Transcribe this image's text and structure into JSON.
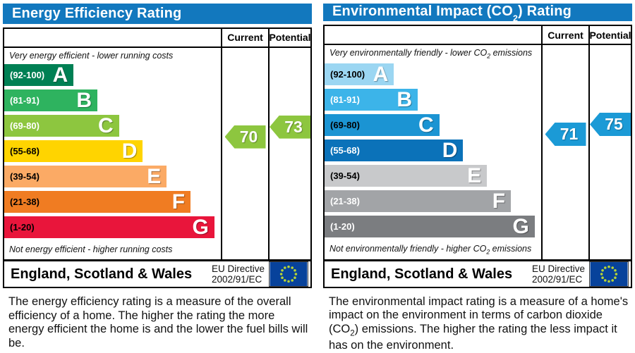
{
  "theme": {
    "header_bg": "#1278be",
    "flag_bg": "#07429b",
    "flag_star_color": "#b8d435"
  },
  "charts": [
    {
      "title": "Energy Efficiency Rating",
      "columns": {
        "current": "Current",
        "potential": "Potential"
      },
      "top_caption": "Very energy efficient - lower running costs",
      "bottom_caption": "Not energy efficient - higher running costs",
      "bands": [
        {
          "letter": "A",
          "range": "(92-100)",
          "color": "#008054",
          "width_pct": 32,
          "text_color": "#ffffff"
        },
        {
          "letter": "B",
          "range": "(81-91)",
          "color": "#2eb35f",
          "width_pct": 43,
          "text_color": "#ffffff"
        },
        {
          "letter": "C",
          "range": "(69-80)",
          "color": "#8dc63f",
          "width_pct": 53,
          "text_color": "#ffffff"
        },
        {
          "letter": "D",
          "range": "(55-68)",
          "color": "#ffd400",
          "width_pct": 64,
          "text_color": "#000000"
        },
        {
          "letter": "E",
          "range": "(39-54)",
          "color": "#fbaa65",
          "width_pct": 75,
          "text_color": "#000000"
        },
        {
          "letter": "F",
          "range": "(21-38)",
          "color": "#f07c22",
          "width_pct": 86,
          "text_color": "#000000"
        },
        {
          "letter": "G",
          "range": "(1-20)",
          "color": "#e9153b",
          "width_pct": 97,
          "text_color": "#000000"
        }
      ],
      "current": {
        "value": "70",
        "color": "#8dc63f"
      },
      "potential": {
        "value": "73",
        "color": "#8dc63f"
      },
      "footer": {
        "region": "England, Scotland & Wales",
        "directive_line1": "EU Directive",
        "directive_line2": "2002/91/EC"
      },
      "description": "The energy efficiency rating is a measure of the overall efficiency of a home. The higher the rating the more energy efficient the home is and the lower the fuel bills will be."
    },
    {
      "title_parts": {
        "pre": "Environmental Impact (CO",
        "sub": "2",
        "post": ") Rating"
      },
      "columns": {
        "current": "Current",
        "potential": "Potential"
      },
      "top_caption_parts": {
        "pre": "Very environmentally friendly - lower CO",
        "sub": "2",
        "post": " emissions"
      },
      "bottom_caption_parts": {
        "pre": "Not environmentally friendly - higher CO",
        "sub": "2",
        "post": " emissions"
      },
      "bands": [
        {
          "letter": "A",
          "range": "(92-100)",
          "color": "#9bd6f2",
          "width_pct": 32,
          "text_color": "#000000"
        },
        {
          "letter": "B",
          "range": "(81-91)",
          "color": "#3cb4e9",
          "width_pct": 43,
          "text_color": "#ffffff"
        },
        {
          "letter": "C",
          "range": "(69-80)",
          "color": "#1b94d3",
          "width_pct": 53,
          "text_color": "#000000"
        },
        {
          "letter": "D",
          "range": "(55-68)",
          "color": "#0b72b9",
          "width_pct": 64,
          "text_color": "#ffffff"
        },
        {
          "letter": "E",
          "range": "(39-54)",
          "color": "#c8c9cb",
          "width_pct": 75,
          "text_color": "#000000"
        },
        {
          "letter": "F",
          "range": "(21-38)",
          "color": "#a2a4a7",
          "width_pct": 86,
          "text_color": "#ffffff"
        },
        {
          "letter": "G",
          "range": "(1-20)",
          "color": "#7b7d80",
          "width_pct": 97,
          "text_color": "#ffffff"
        }
      ],
      "current": {
        "value": "71",
        "color": "#1b9ad6"
      },
      "potential": {
        "value": "75",
        "color": "#1b9ad6"
      },
      "footer": {
        "region": "England, Scotland & Wales",
        "directive_line1": "EU Directive",
        "directive_line2": "2002/91/EC"
      },
      "description_parts": {
        "pre": "The environmental impact rating is a measure of a home's impact on the environment in terms of carbon dioxide (CO",
        "sub": "2",
        "post": ") emissions. The higher the rating the less impact it has on the environment."
      }
    }
  ],
  "chart_data": [
    {
      "type": "bar",
      "title": "Energy Efficiency Rating",
      "categories": [
        "A (92-100)",
        "B (81-91)",
        "C (69-80)",
        "D (55-68)",
        "E (39-54)",
        "F (21-38)",
        "G (1-20)"
      ],
      "band_width_pct": [
        32,
        43,
        53,
        64,
        75,
        86,
        97
      ],
      "current": 70,
      "current_band": "C",
      "potential": 73,
      "potential_band": "C",
      "region": "England, Scotland & Wales",
      "directive": "EU Directive 2002/91/EC"
    },
    {
      "type": "bar",
      "title": "Environmental Impact (CO2) Rating",
      "categories": [
        "A (92-100)",
        "B (81-91)",
        "C (69-80)",
        "D (55-68)",
        "E (39-54)",
        "F (21-38)",
        "G (1-20)"
      ],
      "band_width_pct": [
        32,
        43,
        53,
        64,
        75,
        86,
        97
      ],
      "current": 71,
      "current_band": "C",
      "potential": 75,
      "potential_band": "C",
      "region": "England, Scotland & Wales",
      "directive": "EU Directive 2002/91/EC"
    }
  ]
}
